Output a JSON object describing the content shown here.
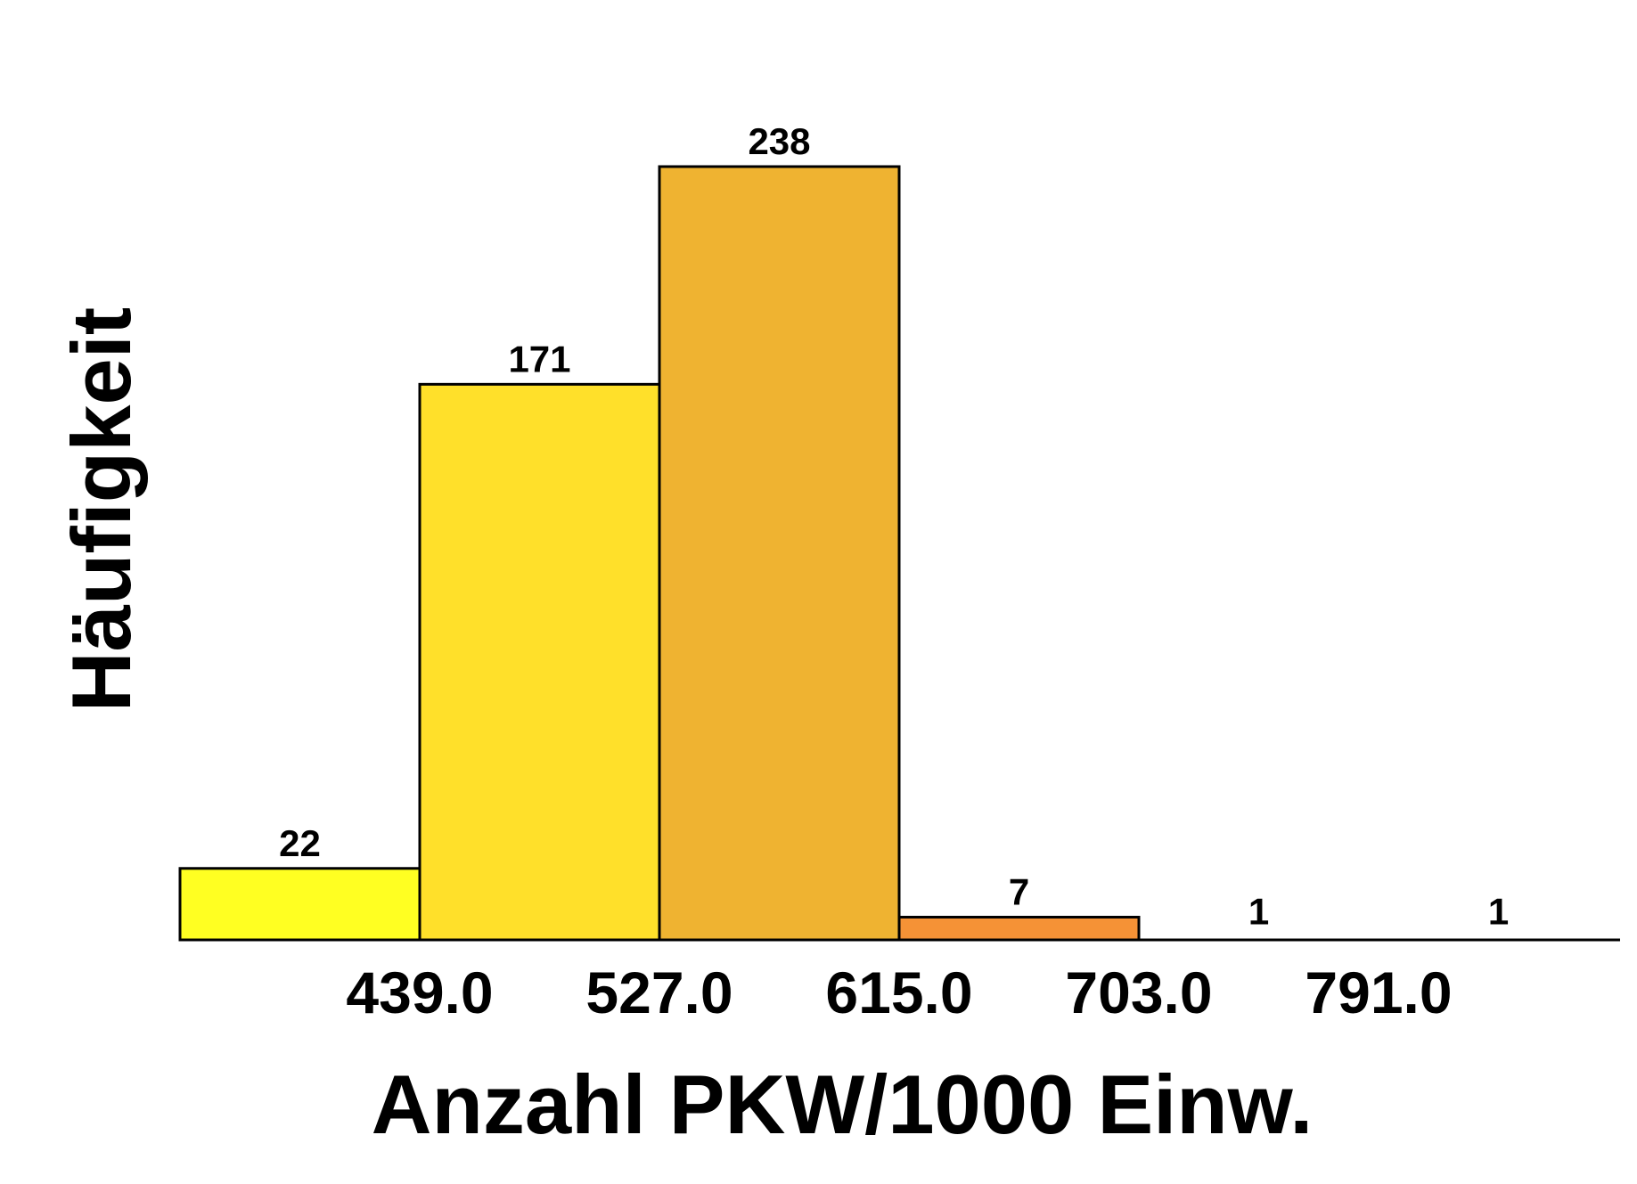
{
  "chart_data": {
    "type": "bar",
    "title": "",
    "xlabel": "Anzahl PKW/1000 Einw.",
    "ylabel": "Häufigkeit",
    "ylim": [
      0,
      238
    ],
    "grid": false,
    "legend": "none",
    "bin_edges": [
      351.0,
      439.0,
      527.0,
      615.0,
      703.0,
      791.0,
      879.0
    ],
    "tick_labels": [
      "439.0",
      "527.0",
      "615.0",
      "703.0",
      "791.0"
    ],
    "values": [
      22,
      171,
      238,
      7,
      1,
      1
    ],
    "data_labels": [
      "22",
      "171",
      "238",
      "7",
      "1",
      "1"
    ],
    "colors": [
      "#FFFF22",
      "#FFE02A",
      "#EFB331",
      "#F59236",
      "#FFFFFF",
      "#FFFFFF"
    ]
  }
}
